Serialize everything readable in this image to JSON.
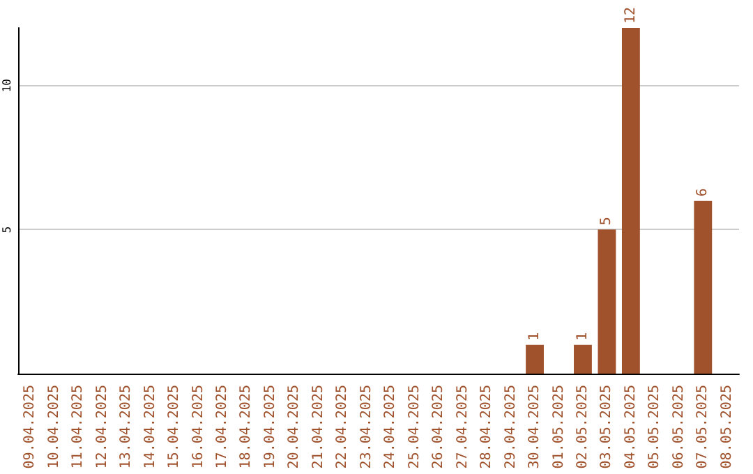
{
  "chart_data": {
    "type": "bar",
    "categories": [
      "09.04.2025",
      "10.04.2025",
      "11.04.2025",
      "12.04.2025",
      "13.04.2025",
      "14.04.2025",
      "15.04.2025",
      "16.04.2025",
      "17.04.2025",
      "18.04.2025",
      "19.04.2025",
      "20.04.2025",
      "21.04.2025",
      "22.04.2025",
      "23.04.2025",
      "24.04.2025",
      "25.04.2025",
      "26.04.2025",
      "27.04.2025",
      "28.04.2025",
      "29.04.2025",
      "30.04.2025",
      "01.05.2025",
      "02.05.2025",
      "03.05.2025",
      "04.05.2025",
      "05.05.2025",
      "06.05.2025",
      "07.05.2025",
      "08.05.2025"
    ],
    "values": [
      null,
      null,
      null,
      null,
      null,
      null,
      null,
      null,
      null,
      null,
      null,
      null,
      null,
      null,
      null,
      null,
      null,
      null,
      null,
      null,
      null,
      1,
      null,
      1,
      5,
      12,
      null,
      null,
      6,
      null
    ],
    "color": "#a0522d",
    "ylim": [
      0,
      12
    ],
    "yticks": [
      5,
      10
    ],
    "grid": "y",
    "data_labels": true
  }
}
